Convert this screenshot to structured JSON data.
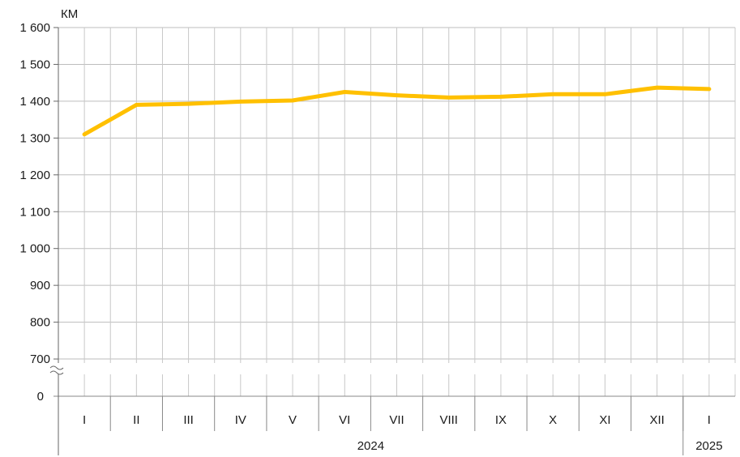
{
  "chart_data": {
    "type": "line",
    "unit_label": "КМ",
    "y_ticks": [
      "1 600",
      "1 500",
      "1 400",
      "1 300",
      "1 200",
      "1 100",
      "1 000",
      "900",
      "800",
      "700"
    ],
    "y_tick_values": [
      1600,
      1500,
      1400,
      1300,
      1200,
      1100,
      1000,
      900,
      800,
      700
    ],
    "y_zero_label": "0",
    "ylim": [
      650,
      1600
    ],
    "axis_break": true,
    "grid": true,
    "categories": [
      "I",
      "II",
      "III",
      "IV",
      "V",
      "VI",
      "VII",
      "VIII",
      "IX",
      "X",
      "XI",
      "XII",
      "I"
    ],
    "year_groups": [
      {
        "label": "2024",
        "count": 12
      },
      {
        "label": "2025",
        "count": 1
      }
    ],
    "series": [
      {
        "values": [
          1310,
          1390,
          1393,
          1399,
          1402,
          1425,
          1416,
          1410,
          1412,
          1419,
          1419,
          1437,
          1433
        ],
        "color": "#FFC000"
      }
    ]
  }
}
